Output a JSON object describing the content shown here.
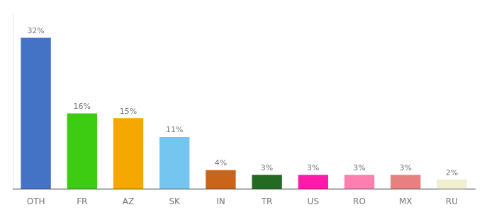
{
  "chart_data": {
    "type": "bar",
    "categories": [
      "OTH",
      "FR",
      "AZ",
      "SK",
      "IN",
      "TR",
      "US",
      "RO",
      "MX",
      "RU"
    ],
    "values": [
      32,
      16,
      15,
      11,
      4,
      3,
      3,
      3,
      3,
      2
    ],
    "value_labels": [
      "32%",
      "16%",
      "15%",
      "11%",
      "4%",
      "3%",
      "3%",
      "3%",
      "3%",
      "2%"
    ],
    "colors": [
      "#4472c4",
      "#3dcc11",
      "#f5a800",
      "#74c6f0",
      "#c8651a",
      "#236b23",
      "#ff1aaa",
      "#ff80b0",
      "#e88080",
      "#f0f0d0"
    ],
    "ylim": [
      0,
      37
    ],
    "grid": false,
    "data_labels": true,
    "tick_labels": "x"
  }
}
